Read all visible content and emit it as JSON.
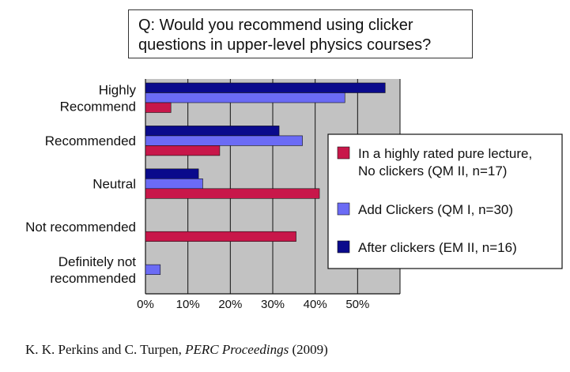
{
  "title_lines": [
    "Q: Would you recommend using clicker",
    "questions in upper-level physics courses?"
  ],
  "caption": {
    "authors": "K. K. Perkins and C. Turpen, ",
    "journal": "PERC Proceedings",
    "year": " (2009)"
  },
  "chart_data": {
    "type": "bar",
    "orientation": "horizontal",
    "title": "Q: Would you recommend using clicker questions in upper-level physics courses?",
    "categories": [
      [
        "Highly",
        "Recommend"
      ],
      [
        "Recommended"
      ],
      [
        "Neutral"
      ],
      [
        "Not recommended"
      ],
      [
        "Definitely not",
        "recommended"
      ]
    ],
    "series": [
      {
        "name": "After clickers (EM II,  n=16)",
        "color": "#0a0a8c",
        "values": [
          56.5,
          31.5,
          12.5,
          0,
          0
        ]
      },
      {
        "name": "Add Clickers (QM I, n=30)",
        "color": "#6b6bf5",
        "values": [
          47,
          37,
          13.5,
          0,
          3.5
        ]
      },
      {
        "name": "In a highly rated pure lecture, No clickers (QM II, n=17)",
        "color": "#c8174a",
        "values": [
          6,
          17.5,
          41,
          35.5,
          0
        ]
      }
    ],
    "legend_entries": [
      {
        "lines": [
          "In a highly rated pure lecture,",
          "No clickers (QM II, n=17)"
        ],
        "color": "#c8174a"
      },
      {
        "lines": [
          "Add Clickers (QM I, n=30)"
        ],
        "color": "#6b6bf5"
      },
      {
        "lines": [
          "After clickers (EM II,  n=16)"
        ],
        "color": "#0a0a8c"
      }
    ],
    "x_ticks": [
      "0%",
      "10%",
      "20%",
      "30%",
      "40%",
      "50%"
    ],
    "xlim": [
      0,
      60
    ],
    "xlabel": "",
    "ylabel": "",
    "grid": true,
    "legend_position": "right"
  }
}
